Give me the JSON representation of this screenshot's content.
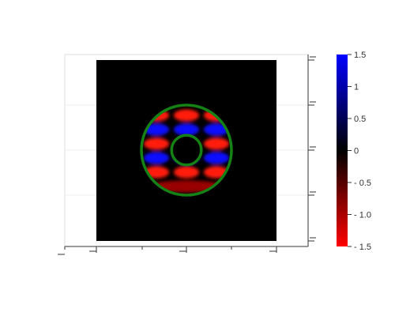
{
  "chart_data": {
    "type": "heatmap",
    "title": "",
    "xlabel": "",
    "ylabel": "",
    "grid": true,
    "field": {
      "description_pattern": "alternating red and blue lobes inside an annulus",
      "rows_of_lobes": [
        {
          "color": "red",
          "lobes": 3
        },
        {
          "color": "blue",
          "lobes": 3
        },
        {
          "color": "red",
          "lobes": 3
        },
        {
          "color": "blue",
          "lobes": 3
        },
        {
          "color": "red",
          "lobes": 3
        },
        {
          "color": "dark-red",
          "lobes": 1
        }
      ]
    },
    "annulus": {
      "outer_radius_ratio": 1.0,
      "inner_radius_ratio": 0.33,
      "ring_color": "#148214"
    },
    "colorbar": {
      "min": -1.5,
      "max": 1.5,
      "ticks": [
        "1.5",
        "1",
        "0.5",
        "0",
        "- 0.5",
        "- 1.0",
        "- 1.5"
      ],
      "tick_values": [
        1.5,
        1.0,
        0.5,
        0.0,
        -0.5,
        -1.0,
        -1.5
      ],
      "colormap": [
        {
          "value": -1.5,
          "color": "#ff0000"
        },
        {
          "value": 0.0,
          "color": "#000000"
        },
        {
          "value": 1.5,
          "color": "#0000ff"
        }
      ]
    },
    "colors": {
      "background": "#000000",
      "positive": "#0000ff",
      "negative": "#ff0000",
      "ring": "#148214"
    }
  }
}
